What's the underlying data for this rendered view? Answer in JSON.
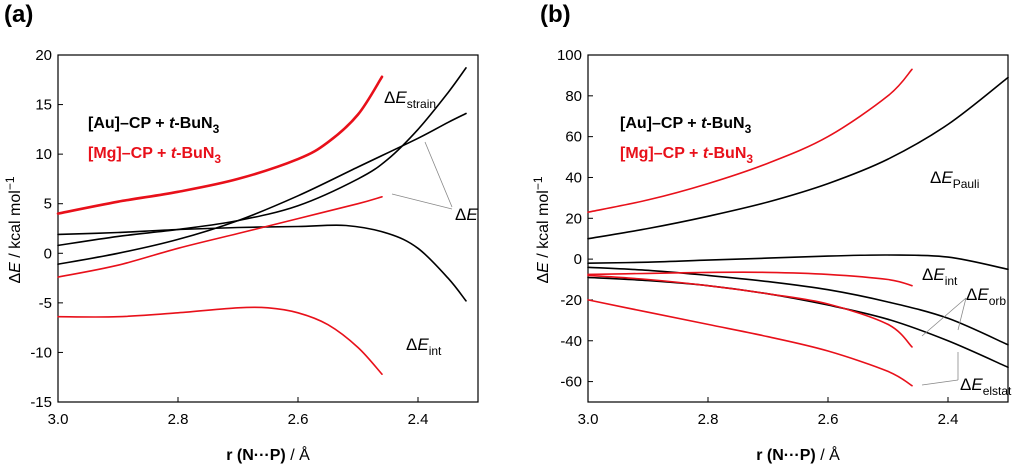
{
  "chart_data": [
    {
      "panel": "(a)",
      "type": "line",
      "xlabel_prefix": "r (N···P)",
      "xlabel_unit": " / Å",
      "ylabel_main": "E",
      "ylabel_unit": " / kcal mol",
      "ylabel_exp": "−1",
      "xlim": [
        3.0,
        2.3
      ],
      "ylim": [
        -15,
        20
      ],
      "xticks": [
        3.0,
        2.8,
        2.6,
        2.4
      ],
      "xtick_labels": [
        "3.0",
        "2.8",
        "2.6",
        "2.4"
      ],
      "yticks": [
        -15,
        -10,
        -5,
        0,
        5,
        10,
        15,
        20
      ],
      "ytick_labels": [
        "-15",
        "-10",
        "-5",
        "0",
        "5",
        "10",
        "15",
        "20"
      ],
      "legend": [
        {
          "name_a": "[Au]–CP + ",
          "name_b": "t",
          "name_c": "-BuN",
          "name_sub": "3",
          "color": "#000000"
        },
        {
          "name_a": "[Mg]–CP + ",
          "name_b": "t",
          "name_c": "-BuN",
          "name_sub": "3",
          "color": "#e8101a"
        }
      ],
      "annotations": [
        {
          "main": "E",
          "sub": "strain"
        },
        {
          "main": "E",
          "sub": ""
        },
        {
          "main": "E",
          "sub": "int"
        }
      ],
      "series": [
        {
          "name": "Au ΔE_strain",
          "color": "#000000",
          "x": [
            3.0,
            2.9,
            2.8,
            2.7,
            2.6,
            2.5,
            2.45,
            2.4,
            2.35,
            2.32
          ],
          "y": [
            0.8,
            1.7,
            2.4,
            3.3,
            4.8,
            7.5,
            9.5,
            12.5,
            16.2,
            18.7
          ]
        },
        {
          "name": "Au ΔE",
          "color": "#000000",
          "x": [
            3.0,
            2.9,
            2.8,
            2.7,
            2.6,
            2.5,
            2.4,
            2.35,
            2.32
          ],
          "y": [
            -1.1,
            0.0,
            1.4,
            3.3,
            5.8,
            8.7,
            11.6,
            13.2,
            14.1
          ]
        },
        {
          "name": "Au ΔE_int",
          "color": "#000000",
          "x": [
            3.0,
            2.9,
            2.8,
            2.7,
            2.6,
            2.52,
            2.45,
            2.4,
            2.35,
            2.32
          ],
          "y": [
            1.9,
            2.1,
            2.4,
            2.6,
            2.7,
            2.8,
            2.0,
            0.5,
            -2.5,
            -4.8
          ]
        },
        {
          "name": "Mg ΔE_strain",
          "color": "#e8101a",
          "x": [
            3.0,
            2.9,
            2.8,
            2.7,
            2.6,
            2.55,
            2.5,
            2.46
          ],
          "y": [
            4.0,
            5.2,
            6.2,
            7.5,
            9.5,
            11.2,
            14.0,
            17.8
          ]
        },
        {
          "name": "Mg ΔE",
          "color": "#e8101a",
          "x": [
            3.0,
            2.9,
            2.8,
            2.7,
            2.6,
            2.5,
            2.46
          ],
          "y": [
            -2.4,
            -1.2,
            0.5,
            2.0,
            3.5,
            5.0,
            5.7
          ]
        },
        {
          "name": "Mg ΔE_int",
          "color": "#e8101a",
          "x": [
            3.0,
            2.9,
            2.8,
            2.7,
            2.65,
            2.6,
            2.55,
            2.5,
            2.46
          ],
          "y": [
            -6.4,
            -6.4,
            -6.0,
            -5.5,
            -5.5,
            -6.0,
            -7.2,
            -9.5,
            -12.2
          ]
        }
      ]
    },
    {
      "panel": "(b)",
      "type": "line",
      "xlabel_prefix": "r (N···P)",
      "xlabel_unit": " / Å",
      "ylabel_main": "E",
      "ylabel_unit": " / kcal mol",
      "ylabel_exp": "−1",
      "xlim": [
        3.0,
        2.3
      ],
      "ylim": [
        -70,
        100
      ],
      "xticks": [
        3.0,
        2.8,
        2.6,
        2.4
      ],
      "xtick_labels": [
        "3.0",
        "2.8",
        "2.6",
        "2.4"
      ],
      "yticks": [
        -60,
        -40,
        -20,
        0,
        20,
        40,
        60,
        80,
        100
      ],
      "ytick_labels": [
        "-60",
        "-40",
        "-20",
        "0",
        "20",
        "40",
        "60",
        "80",
        "100"
      ],
      "legend": [
        {
          "name_a": "[Au]–CP + ",
          "name_b": "t",
          "name_c": "-BuN",
          "name_sub": "3",
          "color": "#000000"
        },
        {
          "name_a": "[Mg]–CP + ",
          "name_b": "t",
          "name_c": "-BuN",
          "name_sub": "3",
          "color": "#e8101a"
        }
      ],
      "annotations": [
        {
          "main": "E",
          "sub": "Pauli"
        },
        {
          "main": "E",
          "sub": "int"
        },
        {
          "main": "E",
          "sub": "orb"
        },
        {
          "main": "E",
          "sub": "elstat"
        }
      ],
      "series": [
        {
          "name": "Au ΔE_Pauli",
          "color": "#000000",
          "x": [
            3.0,
            2.9,
            2.8,
            2.7,
            2.6,
            2.5,
            2.4,
            2.3
          ],
          "y": [
            10,
            15,
            21,
            28,
            37,
            49,
            66,
            89
          ]
        },
        {
          "name": "Au ΔE_int",
          "color": "#000000",
          "x": [
            3.0,
            2.9,
            2.8,
            2.7,
            2.6,
            2.5,
            2.4,
            2.3
          ],
          "y": [
            -2,
            -1.5,
            -0.5,
            0.5,
            1.5,
            2,
            1,
            -5
          ]
        },
        {
          "name": "Au ΔE_orb",
          "color": "#000000",
          "x": [
            3.0,
            2.9,
            2.8,
            2.7,
            2.6,
            2.5,
            2.4,
            2.3
          ],
          "y": [
            -4,
            -5.5,
            -8,
            -11,
            -15,
            -21,
            -29,
            -42
          ]
        },
        {
          "name": "Au ΔE_elstat",
          "color": "#000000",
          "x": [
            3.0,
            2.9,
            2.8,
            2.7,
            2.6,
            2.5,
            2.4,
            2.3
          ],
          "y": [
            -9,
            -10.5,
            -13,
            -17,
            -22.5,
            -29.5,
            -40,
            -53
          ]
        },
        {
          "name": "Mg ΔE_Pauli",
          "color": "#e8101a",
          "x": [
            3.0,
            2.9,
            2.8,
            2.7,
            2.6,
            2.5,
            2.46
          ],
          "y": [
            23,
            29,
            37,
            47,
            60,
            80,
            93
          ]
        },
        {
          "name": "Mg ΔE_int",
          "color": "#e8101a",
          "x": [
            3.0,
            2.9,
            2.8,
            2.7,
            2.6,
            2.5,
            2.46
          ],
          "y": [
            -7.5,
            -7,
            -6.5,
            -6.5,
            -7.5,
            -10,
            -13
          ]
        },
        {
          "name": "Mg ΔE_orb",
          "color": "#e8101a",
          "x": [
            3.0,
            2.9,
            2.8,
            2.7,
            2.6,
            2.5,
            2.46
          ],
          "y": [
            -8,
            -10,
            -13,
            -17,
            -22,
            -32,
            -43
          ]
        },
        {
          "name": "Mg ΔE_elstat",
          "color": "#e8101a",
          "x": [
            3.0,
            2.9,
            2.8,
            2.7,
            2.6,
            2.5,
            2.46
          ],
          "y": [
            -20,
            -26,
            -32,
            -38,
            -45,
            -55,
            -62
          ]
        }
      ]
    }
  ]
}
